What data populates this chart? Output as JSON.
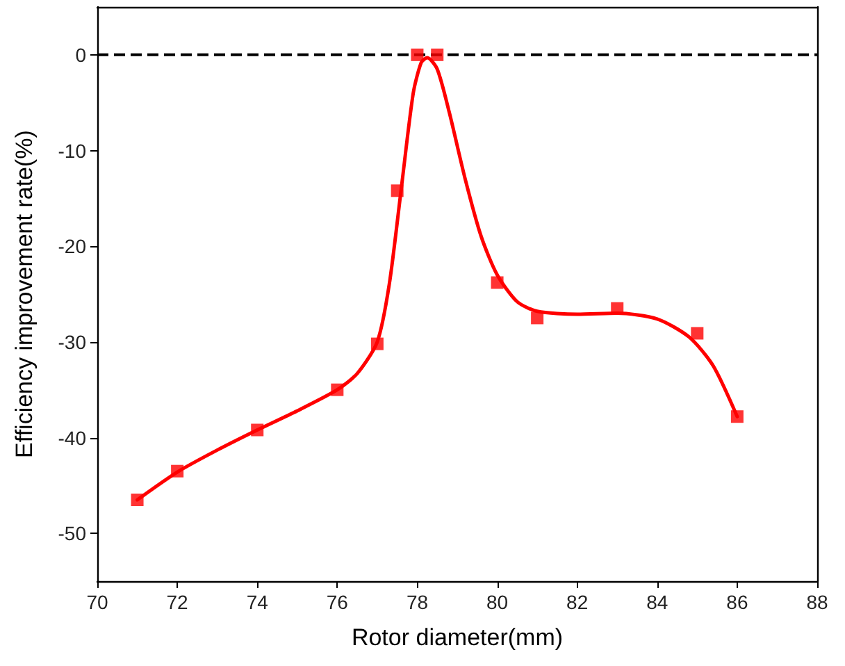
{
  "chart_data": {
    "type": "scatter",
    "xlabel": "Rotor diameter(mm)",
    "ylabel": "Efficiency improvement rate(%)",
    "xlim": [
      70,
      88
    ],
    "xticks": [
      70,
      72,
      74,
      76,
      78,
      80,
      82,
      84,
      86,
      88
    ],
    "ylim": [
      -55,
      5
    ],
    "yticks": [
      -50,
      -40,
      -30,
      -20,
      -10,
      0
    ],
    "series": [
      {
        "type": "line",
        "color": "#ff0000",
        "marker": "none",
        "x": [
          71,
          72,
          73,
          74,
          75,
          76,
          76.5,
          77,
          77.3,
          77.6,
          77.9,
          78.1,
          78.25,
          78.5,
          78.8,
          79.2,
          79.6,
          80,
          80.5,
          81,
          82,
          83,
          84,
          84.8,
          85.4,
          86
        ],
        "values": [
          -46.5,
          -43.6,
          -41.3,
          -39.2,
          -37.2,
          -35,
          -33.3,
          -30,
          -24,
          -14,
          -4,
          -0.8,
          -0.3,
          -1.5,
          -6,
          -13,
          -19,
          -23,
          -25.8,
          -26.8,
          -27.1,
          -27,
          -27.6,
          -29.5,
          -32.5,
          -37.8
        ]
      },
      {
        "color": "#ff0000",
        "marker": "square",
        "x": [
          71,
          72,
          74,
          76,
          77,
          77.5,
          78,
          78.5,
          80,
          81,
          83,
          85,
          86
        ],
        "values": [
          -46.5,
          -43.5,
          -39.2,
          -35,
          -30.2,
          -14.2,
          0,
          0,
          -23.8,
          -27.5,
          -26.5,
          -29.1,
          -37.8
        ]
      }
    ],
    "ref_lines": [
      {
        "axis": "y",
        "value": 0,
        "color": "#000000",
        "line_style": "dashed"
      }
    ]
  }
}
